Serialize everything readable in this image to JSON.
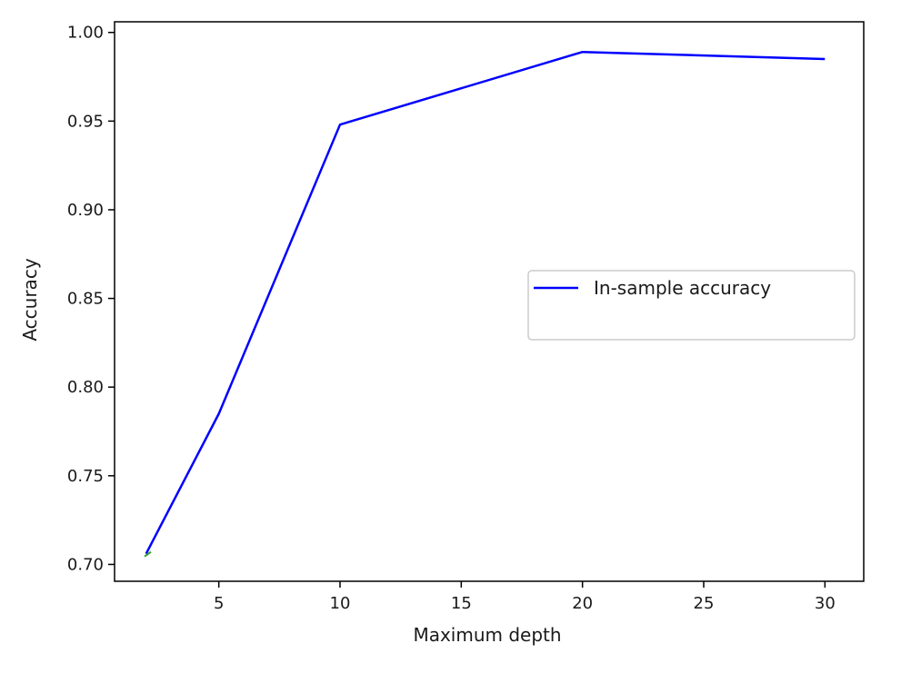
{
  "chart_data": {
    "type": "line",
    "xlabel": "Maximum depth",
    "ylabel": "Accuracy",
    "xlim": [
      0.7,
      31.6
    ],
    "ylim": [
      0.6905,
      1.006
    ],
    "xticks": [
      5,
      10,
      15,
      20,
      25,
      30
    ],
    "xtick_labels": [
      "5",
      "10",
      "15",
      "20",
      "25",
      "30"
    ],
    "yticks": [
      0.7,
      0.75,
      0.8,
      0.85,
      0.9,
      0.95,
      1.0
    ],
    "ytick_labels": [
      "0.70",
      "0.75",
      "0.80",
      "0.85",
      "0.90",
      "0.95",
      "1.00"
    ],
    "grid": false,
    "legend": {
      "position": "center-right"
    },
    "series": [
      {
        "name": "In-sample accuracy",
        "color": "#0000ff",
        "x": [
          2,
          5,
          10,
          20,
          30
        ],
        "y": [
          0.706,
          0.785,
          0.948,
          0.989,
          0.985
        ]
      }
    ],
    "artifact": {
      "color": "#2ca02c",
      "x": [
        2.05
      ],
      "y": [
        0.7055
      ]
    }
  }
}
